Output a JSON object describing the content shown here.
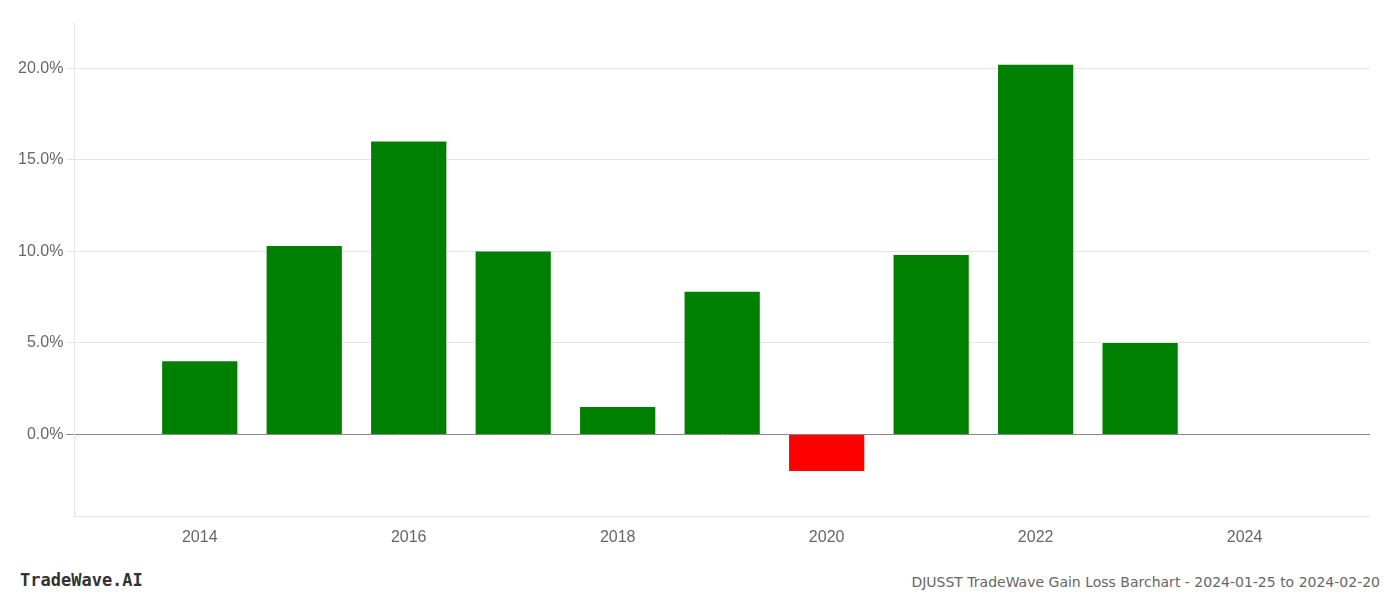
{
  "chart_data": {
    "type": "bar",
    "title": "DJUSST TradeWave Gain Loss Barchart - 2024-01-25 to 2024-02-20",
    "annotations": [
      "TradeWave.AI"
    ],
    "x": [
      2014,
      2015,
      2016,
      2017,
      2018,
      2019,
      2020,
      2021,
      2022,
      2023
    ],
    "values": [
      0.04,
      0.103,
      0.16,
      0.1,
      0.015,
      0.078,
      -0.02,
      0.098,
      0.202,
      0.05
    ],
    "colors": [
      "#008000",
      "#008000",
      "#008000",
      "#008000",
      "#008000",
      "#008000",
      "#ff0000",
      "#008000",
      "#008000",
      "#008000"
    ],
    "xlim": [
      2012.8,
      2025.2
    ],
    "xticks": [
      2014,
      2016,
      2018,
      2020,
      2022,
      2024
    ],
    "ylim": [
      -0.045,
      0.225
    ],
    "yticks": [
      {
        "value": 0.0,
        "label": "0.0%"
      },
      {
        "value": 0.05,
        "label": "5.0%"
      },
      {
        "value": 0.1,
        "label": "10.0%"
      },
      {
        "value": 0.15,
        "label": "15.0%"
      },
      {
        "value": 0.2,
        "label": "20.0%"
      }
    ],
    "grid": true
  }
}
